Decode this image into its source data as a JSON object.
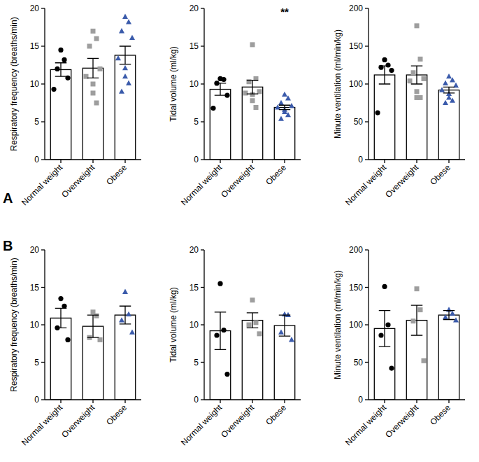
{
  "chart_data": [
    {
      "type": "bar",
      "title": "A",
      "ylabel": "Respiratory frequency (breaths/min)",
      "categories": [
        "Normal weight",
        "Overweight",
        "Obese"
      ],
      "values": [
        11.9,
        12.1,
        13.8
      ],
      "errors": [
        0.9,
        1.3,
        1.2
      ],
      "points": [
        [
          14.5,
          13.2,
          12.0,
          10.8,
          9.3
        ],
        [
          17.0,
          16.0,
          15.0,
          12.0,
          11.0,
          10.0,
          8.8,
          7.5
        ],
        [
          18.9,
          18.2,
          17.0,
          16.1,
          13.4,
          12.1,
          11.0,
          10.1,
          9.0
        ]
      ],
      "colors": [
        "#000000",
        "#9e9e9e",
        "#3b5bab"
      ],
      "ylim": [
        0,
        20
      ],
      "yticks": [
        0,
        5,
        10,
        15,
        20
      ]
    },
    {
      "type": "bar",
      "ylabel": "Tidal volume (ml/kg)",
      "categories": [
        "Normal weight",
        "Overweight",
        "Obese"
      ],
      "values": [
        9.3,
        9.6,
        6.9
      ],
      "errors": [
        0.8,
        0.9,
        0.3
      ],
      "points": [
        [
          10.7,
          10.6,
          10.1,
          8.5,
          6.8
        ],
        [
          15.2,
          10.7,
          10.3,
          9.0,
          8.8,
          8.6,
          7.8,
          6.9
        ],
        [
          8.6,
          8.1,
          7.5,
          7.1,
          6.9,
          6.6,
          6.3,
          5.9,
          5.4
        ]
      ],
      "annotation": {
        "text": "**",
        "category": "Obese"
      },
      "colors": [
        "#000000",
        "#9e9e9e",
        "#3b5bab"
      ],
      "ylim": [
        0,
        20
      ],
      "yticks": [
        0,
        5,
        10,
        15,
        20
      ]
    },
    {
      "type": "bar",
      "ylabel": "Minute ventilation (ml/min/kg)",
      "categories": [
        "Normal weight",
        "Overweight",
        "Obese"
      ],
      "values": [
        112,
        112,
        92
      ],
      "errors": [
        12,
        12,
        4
      ],
      "points": [
        [
          132,
          125,
          122,
          118,
          62
        ],
        [
          177,
          133,
          115,
          107,
          104,
          90,
          82,
          82
        ],
        [
          110,
          105,
          101,
          98,
          92,
          87,
          82,
          78,
          75
        ]
      ],
      "colors": [
        "#000000",
        "#9e9e9e",
        "#3b5bab"
      ],
      "ylim": [
        0,
        200
      ],
      "yticks": [
        0,
        50,
        100,
        150,
        200
      ]
    },
    {
      "type": "bar",
      "title": "B",
      "ylabel": "Respiratory frequency (breaths/min)",
      "categories": [
        "Normal weight",
        "Overweight",
        "Obese"
      ],
      "values": [
        10.9,
        9.8,
        11.3
      ],
      "errors": [
        1.3,
        1.5,
        1.2
      ],
      "points": [
        [
          13.5,
          12.5,
          9.6,
          8.0
        ],
        [
          11.7,
          11.2,
          8.3,
          8.0
        ],
        [
          14.4,
          11.4,
          10.6,
          9.0
        ]
      ],
      "colors": [
        "#000000",
        "#9e9e9e",
        "#3b5bab"
      ],
      "ylim": [
        0,
        20
      ],
      "yticks": [
        0,
        5,
        10,
        15,
        20
      ]
    },
    {
      "type": "bar",
      "ylabel": "Tidal volume (ml/kg)",
      "categories": [
        "Normal weight",
        "Overweight",
        "Obese"
      ],
      "values": [
        9.2,
        10.6,
        9.9
      ],
      "errors": [
        2.5,
        1.0,
        1.4
      ],
      "points": [
        [
          15.5,
          9.3,
          8.6,
          3.4
        ],
        [
          13.3,
          10.3,
          10.0,
          8.8
        ],
        [
          11.4,
          11.3,
          9.0,
          8.0
        ]
      ],
      "colors": [
        "#000000",
        "#9e9e9e",
        "#3b5bab"
      ],
      "ylim": [
        0,
        20
      ],
      "yticks": [
        0,
        5,
        10,
        15,
        20
      ]
    },
    {
      "type": "bar",
      "ylabel": "Minute ventilation (ml/min/kg)",
      "categories": [
        "Normal weight",
        "Overweight",
        "Obese"
      ],
      "values": [
        95,
        106,
        113
      ],
      "errors": [
        24,
        20,
        6
      ],
      "points": [
        [
          151,
          100,
          86,
          42
        ],
        [
          148,
          120,
          105,
          52
        ],
        [
          120,
          115,
          110,
          106
        ]
      ],
      "colors": [
        "#000000",
        "#9e9e9e",
        "#3b5bab"
      ],
      "ylim": [
        0,
        200
      ],
      "yticks": [
        0,
        50,
        100,
        150,
        200
      ]
    }
  ]
}
